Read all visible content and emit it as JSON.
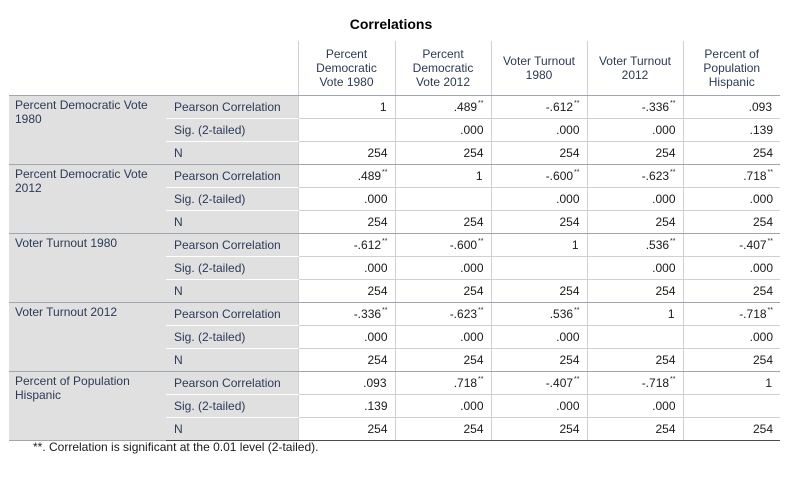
{
  "title": "Correlations",
  "columns": [
    [
      "Percent",
      "Democratic",
      "Vote 1980"
    ],
    [
      "Percent",
      "Democratic",
      "Vote 2012"
    ],
    [
      "Voter Turnout",
      "1980"
    ],
    [
      "Voter Turnout",
      "2012"
    ],
    [
      "Percent of",
      "Population",
      "Hispanic"
    ]
  ],
  "stat_labels": [
    "Pearson Correlation",
    "Sig. (2-tailed)",
    "N"
  ],
  "rows": [
    {
      "variable": "Percent Democratic Vote 1980",
      "pearson": [
        {
          "v": "1",
          "s": ""
        },
        {
          "v": ".489",
          "s": "**"
        },
        {
          "v": "-.612",
          "s": "**"
        },
        {
          "v": "-.336",
          "s": "**"
        },
        {
          "v": ".093",
          "s": ""
        }
      ],
      "sig": [
        "",
        ".000",
        ".000",
        ".000",
        ".139"
      ],
      "n": [
        "254",
        "254",
        "254",
        "254",
        "254"
      ]
    },
    {
      "variable": "Percent Democratic Vote 2012",
      "pearson": [
        {
          "v": ".489",
          "s": "**"
        },
        {
          "v": "1",
          "s": ""
        },
        {
          "v": "-.600",
          "s": "**"
        },
        {
          "v": "-.623",
          "s": "**"
        },
        {
          "v": ".718",
          "s": "**"
        }
      ],
      "sig": [
        ".000",
        "",
        ".000",
        ".000",
        ".000"
      ],
      "n": [
        "254",
        "254",
        "254",
        "254",
        "254"
      ]
    },
    {
      "variable": "Voter Turnout 1980",
      "pearson": [
        {
          "v": "-.612",
          "s": "**"
        },
        {
          "v": "-.600",
          "s": "**"
        },
        {
          "v": "1",
          "s": ""
        },
        {
          "v": ".536",
          "s": "**"
        },
        {
          "v": "-.407",
          "s": "**"
        }
      ],
      "sig": [
        ".000",
        ".000",
        "",
        ".000",
        ".000"
      ],
      "n": [
        "254",
        "254",
        "254",
        "254",
        "254"
      ]
    },
    {
      "variable": "Voter Turnout 2012",
      "pearson": [
        {
          "v": "-.336",
          "s": "**"
        },
        {
          "v": "-.623",
          "s": "**"
        },
        {
          "v": ".536",
          "s": "**"
        },
        {
          "v": "1",
          "s": ""
        },
        {
          "v": "-.718",
          "s": "**"
        }
      ],
      "sig": [
        ".000",
        ".000",
        ".000",
        "",
        ".000"
      ],
      "n": [
        "254",
        "254",
        "254",
        "254",
        "254"
      ]
    },
    {
      "variable": "Percent of Population Hispanic",
      "pearson": [
        {
          "v": ".093",
          "s": ""
        },
        {
          "v": ".718",
          "s": "**"
        },
        {
          "v": "-.407",
          "s": "**"
        },
        {
          "v": "-.718",
          "s": "**"
        },
        {
          "v": "1",
          "s": ""
        }
      ],
      "sig": [
        ".139",
        ".000",
        ".000",
        ".000",
        ""
      ],
      "n": [
        "254",
        "254",
        "254",
        "254",
        "254"
      ]
    }
  ],
  "footnote": "**. Correlation is significant at the 0.01 level (2-tailed)."
}
